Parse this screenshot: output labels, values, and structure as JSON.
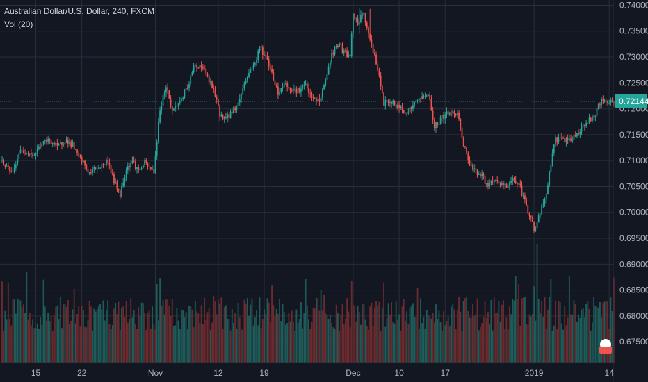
{
  "legend": {
    "title": "Australian Dollar/U.S. Dollar, 240, FXCM",
    "volume_label": "Vol (20)"
  },
  "colors": {
    "background": "#131722",
    "grid": "#2a2e39",
    "up": "#26a69a",
    "down": "#ef5350",
    "up_volume": "#1f5b58",
    "down_volume": "#6b2b2e",
    "text": "#b2b5be",
    "last_price_line": "#26a69a"
  },
  "chart_data": {
    "type": "candlestick",
    "instrument": "Australian Dollar/U.S. Dollar",
    "interval": "240",
    "source": "FXCM",
    "ylim": [
      0.671,
      0.741
    ],
    "y_ticks": [
      "0.74000",
      "0.73500",
      "0.73000",
      "0.72500",
      "0.72000",
      "0.71500",
      "0.71000",
      "0.70500",
      "0.70000",
      "0.69500",
      "0.69000",
      "0.68500",
      "0.68000",
      "0.67500"
    ],
    "x_ticks": [
      {
        "label": "15",
        "index": 22
      },
      {
        "label": "22",
        "index": 52
      },
      {
        "label": "Nov",
        "index": 100
      },
      {
        "label": "12",
        "index": 141
      },
      {
        "label": "19",
        "index": 171
      },
      {
        "label": "Dec",
        "index": 229
      },
      {
        "label": "10",
        "index": 259
      },
      {
        "label": "17",
        "index": 289
      },
      {
        "label": "2019",
        "index": 347
      },
      {
        "label": "14",
        "index": 396
      }
    ],
    "last_price": "0.72144",
    "last_price_value": 0.72144,
    "price_path": [
      [
        0,
        0.71
      ],
      [
        4,
        0.7085
      ],
      [
        8,
        0.7075
      ],
      [
        12,
        0.7115
      ],
      [
        17,
        0.712
      ],
      [
        22,
        0.711
      ],
      [
        26,
        0.713
      ],
      [
        32,
        0.714
      ],
      [
        37,
        0.7125
      ],
      [
        42,
        0.714
      ],
      [
        47,
        0.713
      ],
      [
        50,
        0.711
      ],
      [
        54,
        0.7095
      ],
      [
        58,
        0.7075
      ],
      [
        62,
        0.7085
      ],
      [
        66,
        0.709
      ],
      [
        70,
        0.71
      ],
      [
        74,
        0.706
      ],
      [
        78,
        0.7035
      ],
      [
        82,
        0.7085
      ],
      [
        86,
        0.71
      ],
      [
        90,
        0.708
      ],
      [
        94,
        0.7095
      ],
      [
        97,
        0.7085
      ],
      [
        100,
        0.708
      ],
      [
        104,
        0.72
      ],
      [
        108,
        0.7245
      ],
      [
        112,
        0.7195
      ],
      [
        117,
        0.7215
      ],
      [
        122,
        0.724
      ],
      [
        126,
        0.728
      ],
      [
        131,
        0.7285
      ],
      [
        135,
        0.726
      ],
      [
        139,
        0.7235
      ],
      [
        143,
        0.719
      ],
      [
        147,
        0.718
      ],
      [
        151,
        0.7195
      ],
      [
        155,
        0.721
      ],
      [
        159,
        0.725
      ],
      [
        163,
        0.7275
      ],
      [
        167,
        0.7295
      ],
      [
        169,
        0.732
      ],
      [
        173,
        0.73
      ],
      [
        177,
        0.727
      ],
      [
        181,
        0.723
      ],
      [
        185,
        0.725
      ],
      [
        189,
        0.724
      ],
      [
        194,
        0.7235
      ],
      [
        199,
        0.7245
      ],
      [
        203,
        0.722
      ],
      [
        208,
        0.7215
      ],
      [
        212,
        0.7255
      ],
      [
        216,
        0.7305
      ],
      [
        220,
        0.7325
      ],
      [
        224,
        0.731
      ],
      [
        228,
        0.73
      ],
      [
        230,
        0.738
      ],
      [
        233,
        0.7365
      ],
      [
        237,
        0.7385
      ],
      [
        240,
        0.734
      ],
      [
        244,
        0.7305
      ],
      [
        247,
        0.726
      ],
      [
        250,
        0.721
      ],
      [
        254,
        0.7215
      ],
      [
        258,
        0.7205
      ],
      [
        262,
        0.72
      ],
      [
        266,
        0.7195
      ],
      [
        270,
        0.721
      ],
      [
        274,
        0.722
      ],
      [
        278,
        0.723
      ],
      [
        280,
        0.7215
      ],
      [
        283,
        0.7165
      ],
      [
        287,
        0.718
      ],
      [
        291,
        0.719
      ],
      [
        296,
        0.7195
      ],
      [
        299,
        0.7185
      ],
      [
        302,
        0.713
      ],
      [
        306,
        0.7095
      ],
      [
        310,
        0.708
      ],
      [
        314,
        0.707
      ],
      [
        318,
        0.705
      ],
      [
        322,
        0.706
      ],
      [
        326,
        0.7055
      ],
      [
        330,
        0.705
      ],
      [
        334,
        0.7065
      ],
      [
        338,
        0.7055
      ],
      [
        342,
        0.702
      ],
      [
        346,
        0.699
      ],
      [
        348,
        0.6965
      ],
      [
        350,
        0.698
      ],
      [
        353,
        0.701
      ],
      [
        356,
        0.703
      ],
      [
        358,
        0.708
      ],
      [
        362,
        0.714
      ],
      [
        366,
        0.7145
      ],
      [
        370,
        0.7135
      ],
      [
        374,
        0.7145
      ],
      [
        378,
        0.716
      ],
      [
        382,
        0.7175
      ],
      [
        386,
        0.718
      ],
      [
        390,
        0.7205
      ],
      [
        394,
        0.722
      ],
      [
        396,
        0.7214
      ]
    ],
    "notable_candles": [
      {
        "index": 349,
        "low": 0.6932,
        "high": 0.6995
      },
      {
        "index": 233,
        "low": 0.7345,
        "high": 0.7395
      },
      {
        "index": 240,
        "low": 0.733,
        "high": 0.7393
      }
    ],
    "series": [
      {
        "name": "Vol (20)",
        "type": "volume"
      }
    ]
  }
}
